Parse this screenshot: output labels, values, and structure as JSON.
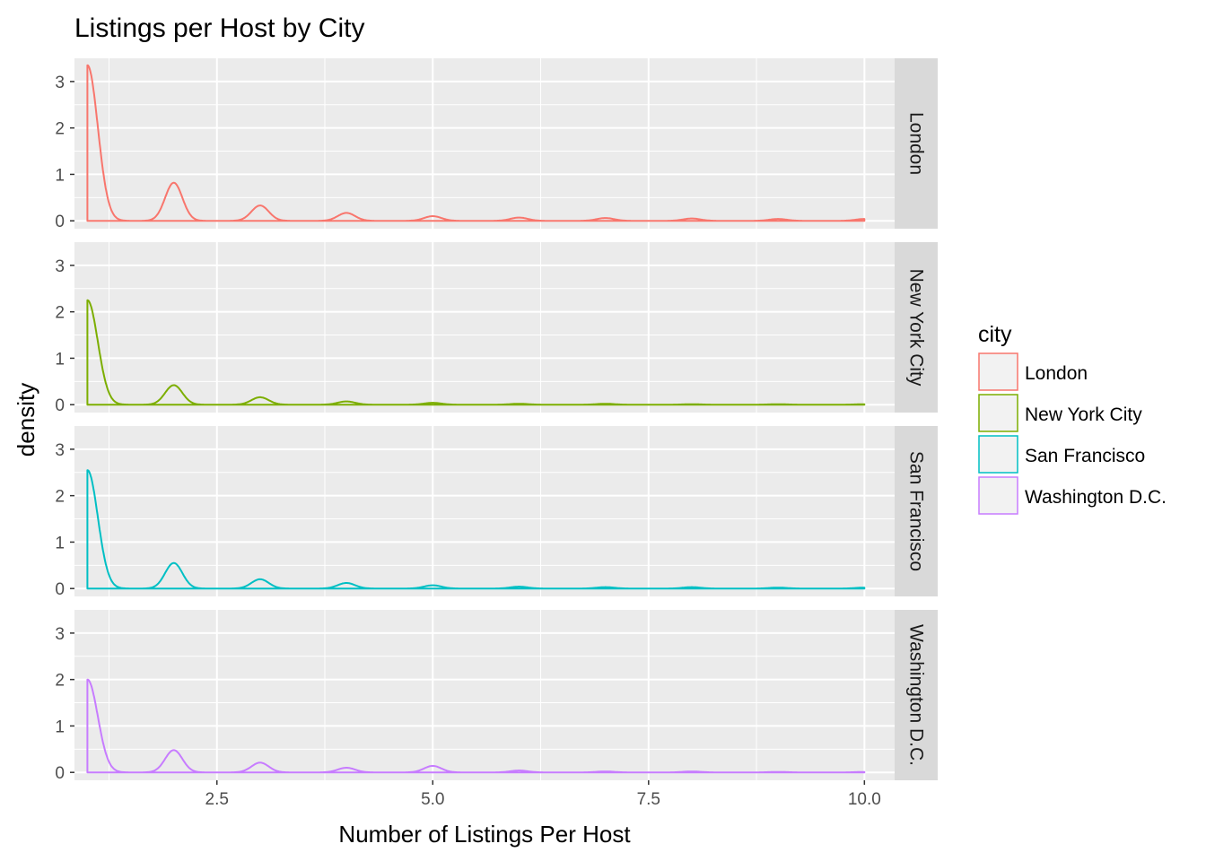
{
  "chart_data": {
    "type": "line",
    "chart_kind": "density, faceted by city",
    "title": "Listings per Host by City",
    "xlabel": "Number of Listings Per Host",
    "ylabel": "density",
    "xlim": [
      0.85,
      10.35
    ],
    "ylim": [
      -0.17,
      3.5
    ],
    "x_ticks": [
      2.5,
      5.0,
      7.5,
      10.0
    ],
    "x_tick_labels": [
      "2.5",
      "5.0",
      "7.5",
      "10.0"
    ],
    "y_ticks": [
      0,
      1,
      2,
      3
    ],
    "y_tick_labels": [
      "0",
      "1",
      "2",
      "3"
    ],
    "grid": true,
    "background": "#ebebeb",
    "strip_background": "#d9d9d9",
    "legend": {
      "title": "city",
      "placement": "right",
      "entries": [
        "London",
        "New York City",
        "San Francisco",
        "Washington D.C."
      ]
    },
    "series": [
      {
        "name": "London",
        "color": "#F8766D",
        "x_start": 1,
        "x_end": 10,
        "peak_at_1": 3.35,
        "bumps": [
          {
            "x": 2,
            "y": 0.82
          },
          {
            "x": 3,
            "y": 0.33
          },
          {
            "x": 4,
            "y": 0.17
          },
          {
            "x": 5,
            "y": 0.1
          },
          {
            "x": 6,
            "y": 0.07
          },
          {
            "x": 7,
            "y": 0.06
          },
          {
            "x": 8,
            "y": 0.05
          },
          {
            "x": 9,
            "y": 0.04
          },
          {
            "x": 10,
            "y": 0.04
          }
        ]
      },
      {
        "name": "New York City",
        "color": "#7CAE00",
        "x_start": 1,
        "x_end": 10,
        "peak_at_1": 2.25,
        "bumps": [
          {
            "x": 2,
            "y": 0.42
          },
          {
            "x": 3,
            "y": 0.16
          },
          {
            "x": 4,
            "y": 0.07
          },
          {
            "x": 5,
            "y": 0.04
          },
          {
            "x": 6,
            "y": 0.02
          },
          {
            "x": 7,
            "y": 0.02
          },
          {
            "x": 8,
            "y": 0.01
          },
          {
            "x": 9,
            "y": 0.01
          },
          {
            "x": 10,
            "y": 0.01
          }
        ]
      },
      {
        "name": "San Francisco",
        "color": "#00BFC4",
        "x_start": 1,
        "x_end": 10,
        "peak_at_1": 2.55,
        "bumps": [
          {
            "x": 2,
            "y": 0.55
          },
          {
            "x": 3,
            "y": 0.2
          },
          {
            "x": 4,
            "y": 0.12
          },
          {
            "x": 5,
            "y": 0.07
          },
          {
            "x": 6,
            "y": 0.04
          },
          {
            "x": 7,
            "y": 0.03
          },
          {
            "x": 8,
            "y": 0.03
          },
          {
            "x": 9,
            "y": 0.02
          },
          {
            "x": 10,
            "y": 0.02
          }
        ]
      },
      {
        "name": "Washington D.C.",
        "color": "#C77CFF",
        "x_start": 1,
        "x_end": 10,
        "peak_at_1": 2.0,
        "bumps": [
          {
            "x": 2,
            "y": 0.48
          },
          {
            "x": 3,
            "y": 0.21
          },
          {
            "x": 4,
            "y": 0.1
          },
          {
            "x": 5,
            "y": 0.14
          },
          {
            "x": 6,
            "y": 0.04
          },
          {
            "x": 7,
            "y": 0.02
          },
          {
            "x": 8,
            "y": 0.02
          },
          {
            "x": 9,
            "y": 0.01
          },
          {
            "x": 10,
            "y": 0.01
          }
        ]
      }
    ]
  }
}
